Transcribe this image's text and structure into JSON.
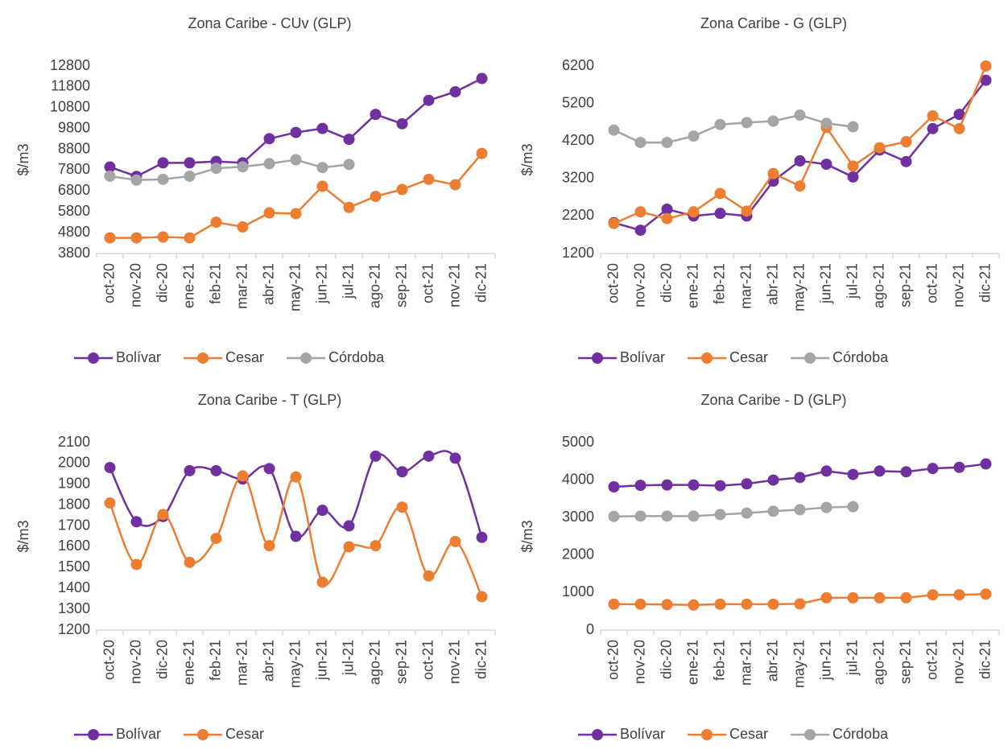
{
  "chart_data": [
    {
      "type": "line",
      "title": "Zona Caribe - CUv (GLP)",
      "y_label": "$/m3",
      "categories": [
        "oct-20",
        "nov-20",
        "dic-20",
        "ene-21",
        "feb-21",
        "mar-21",
        "abr-21",
        "may-21",
        "jun-21",
        "jul-21",
        "ago-21",
        "sep-21",
        "oct-21",
        "nov-21",
        "dic-21"
      ],
      "ylim": [
        3800,
        12800
      ],
      "yticks": [
        3800,
        4800,
        5800,
        6800,
        7800,
        8800,
        9800,
        10800,
        11800,
        12800
      ],
      "smooth": false,
      "series": [
        {
          "name": "Bolívar",
          "color": "#7030a0",
          "values": [
            7950,
            7500,
            8150,
            8150,
            8220,
            8150,
            9310,
            9610,
            9800,
            9280,
            10475,
            10025,
            11150,
            11560,
            12200
          ]
        },
        {
          "name": "Cesar",
          "color": "#ed7d31",
          "values": [
            4550,
            4550,
            4590,
            4550,
            5300,
            5075,
            5750,
            5710,
            7025,
            6010,
            6540,
            6875,
            7360,
            7100,
            8600
          ]
        },
        {
          "name": "Córdoba",
          "color": "#a5a5a5",
          "values": [
            7510,
            7325,
            7360,
            7510,
            7890,
            7960,
            8110,
            8300,
            7925,
            8075,
            null,
            null,
            null,
            null,
            null
          ]
        }
      ]
    },
    {
      "type": "line",
      "title": "Zona Caribe - G (GLP)",
      "y_label": "$/m3",
      "categories": [
        "oct-20",
        "nov-20",
        "dic-20",
        "ene-21",
        "feb-21",
        "mar-21",
        "abr-21",
        "may-21",
        "jun-21",
        "jul-21",
        "ago-21",
        "sep-21",
        "oct-21",
        "nov-21",
        "dic-21"
      ],
      "ylim": [
        1200,
        6200
      ],
      "yticks": [
        1200,
        2200,
        3200,
        4200,
        5200,
        6200
      ],
      "smooth": false,
      "series": [
        {
          "name": "Bolívar",
          "color": "#7030a0",
          "values": [
            2020,
            1820,
            2380,
            2200,
            2270,
            2200,
            3130,
            3670,
            3580,
            3240,
            3960,
            3650,
            4530,
            4910,
            5820
          ]
        },
        {
          "name": "Cesar",
          "color": "#ed7d31",
          "values": [
            2000,
            2310,
            2130,
            2310,
            2800,
            2330,
            3330,
            3000,
            4560,
            3530,
            4020,
            4180,
            4870,
            4530,
            6200
          ]
        },
        {
          "name": "Córdoba",
          "color": "#a5a5a5",
          "values": [
            4490,
            4160,
            4160,
            4330,
            4640,
            4690,
            4730,
            4890,
            4670,
            4580,
            null,
            null,
            null,
            null,
            null
          ]
        }
      ]
    },
    {
      "type": "line",
      "title": "Zona Caribe - T (GLP)",
      "y_label": "$/m3",
      "categories": [
        "oct-20",
        "nov-20",
        "dic-20",
        "ene-21",
        "feb-21",
        "mar-21",
        "abr-21",
        "may-21",
        "jun-21",
        "jul-21",
        "ago-21",
        "sep-21",
        "oct-21",
        "nov-21",
        "dic-21"
      ],
      "ylim": [
        1200,
        2100
      ],
      "yticks": [
        1200,
        1300,
        1400,
        1500,
        1600,
        1700,
        1800,
        1900,
        2000,
        2100
      ],
      "smooth": true,
      "series": [
        {
          "name": "Bolívar",
          "color": "#7030a0",
          "values": [
            1980,
            1720,
            1745,
            1965,
            1965,
            1925,
            1975,
            1650,
            1775,
            1700,
            2035,
            1960,
            2035,
            2025,
            1645
          ]
        },
        {
          "name": "Cesar",
          "color": "#ed7d31",
          "values": [
            1810,
            1515,
            1755,
            1525,
            1640,
            1940,
            1605,
            1935,
            1430,
            1600,
            1605,
            1790,
            1460,
            1625,
            1360
          ]
        }
      ]
    },
    {
      "type": "line",
      "title": "Zona Caribe - D (GLP)",
      "y_label": "$/m3",
      "categories": [
        "oct-20",
        "nov-20",
        "dic-20",
        "ene-21",
        "feb-21",
        "mar-21",
        "abr-21",
        "may-21",
        "jun-21",
        "jul-21",
        "ago-21",
        "sep-21",
        "oct-21",
        "nov-21",
        "dic-21"
      ],
      "ylim": [
        0,
        5000
      ],
      "yticks": [
        0,
        1000,
        2000,
        3000,
        4000,
        5000
      ],
      "smooth": false,
      "series": [
        {
          "name": "Bolívar",
          "color": "#7030a0",
          "values": [
            3820,
            3860,
            3870,
            3870,
            3850,
            3900,
            4000,
            4070,
            4240,
            4150,
            4240,
            4220,
            4310,
            4340,
            4430
          ]
        },
        {
          "name": "Cesar",
          "color": "#ed7d31",
          "values": [
            690,
            690,
            680,
            670,
            690,
            690,
            690,
            700,
            860,
            860,
            860,
            860,
            940,
            940,
            960
          ]
        },
        {
          "name": "Córdoba",
          "color": "#a5a5a5",
          "values": [
            3030,
            3040,
            3040,
            3040,
            3080,
            3120,
            3170,
            3210,
            3270,
            3290,
            null,
            null,
            null,
            null,
            null
          ]
        }
      ]
    }
  ]
}
